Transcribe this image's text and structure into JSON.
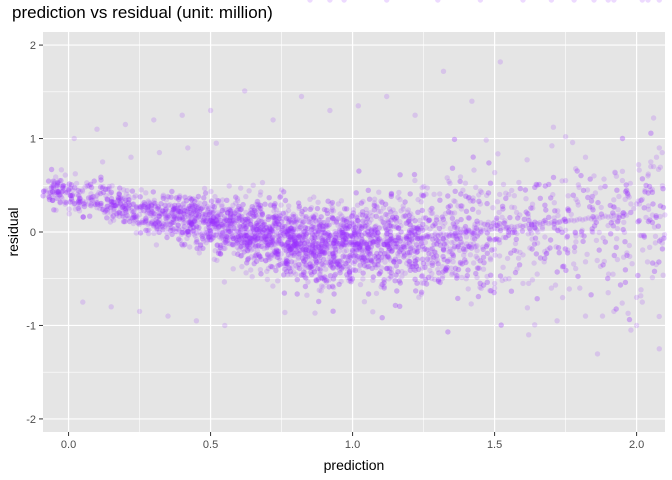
{
  "chart_data": {
    "type": "scatter",
    "title": "prediction vs residual (unit: million)",
    "xlabel": "prediction",
    "ylabel": "residual",
    "xlim": [
      -0.09,
      2.1
    ],
    "ylim": [
      -2.14,
      2.14
    ],
    "x_ticks": [
      0.0,
      0.5,
      1.0,
      1.5,
      2.0
    ],
    "x_tick_labels": [
      "0.0",
      "0.5",
      "1.0",
      "1.5",
      "2.0"
    ],
    "y_ticks": [
      -2,
      -1,
      0,
      1,
      2
    ],
    "y_tick_labels": [
      "-2",
      "-1",
      "0",
      "1",
      "2"
    ],
    "grid": true,
    "point_color": "#9b30ff",
    "point_alpha": 0.18,
    "panel_background": "#e5e5e5",
    "gridline_color": "#ffffff",
    "points_x": [
      -0.08,
      -0.07,
      -0.05,
      -0.04,
      -0.02,
      -0.01,
      0.0,
      0.01,
      0.02,
      0.03,
      0.04,
      0.05,
      0.06,
      0.07,
      0.08,
      0.09,
      0.1,
      0.11,
      0.12,
      0.13,
      0.14,
      0.15,
      0.16,
      0.17,
      0.18,
      0.19,
      0.2,
      0.21,
      0.22,
      0.23,
      0.24,
      0.25,
      0.26,
      0.27,
      0.28,
      0.29,
      0.3,
      0.31,
      0.32,
      0.33,
      0.34,
      0.35,
      0.36,
      0.37,
      0.38,
      0.39,
      0.4,
      0.41,
      0.42,
      0.43,
      0.44,
      0.45,
      0.46,
      0.47,
      0.48,
      0.49,
      0.5,
      0.51,
      0.52,
      0.53,
      0.54,
      0.55,
      0.56,
      0.57,
      0.58,
      0.59,
      0.6,
      0.61,
      0.62,
      0.63,
      0.64,
      0.65,
      0.66,
      0.67,
      0.68,
      0.69,
      0.7,
      0.71,
      0.72,
      0.73,
      0.74,
      0.75,
      0.76,
      0.77,
      0.78,
      0.79,
      0.8,
      0.81,
      0.82,
      0.83,
      0.84,
      0.85,
      0.86,
      0.87,
      0.88,
      0.89,
      0.9,
      0.91,
      0.92,
      0.93,
      0.94,
      0.95,
      0.96,
      0.97,
      0.98,
      0.99,
      1.0,
      1.01,
      1.02,
      1.03,
      1.04,
      1.05,
      1.06,
      1.07,
      1.08,
      1.09,
      1.1,
      1.11,
      1.12,
      1.13,
      1.14,
      1.15,
      1.16,
      1.17,
      1.18,
      1.19,
      1.2,
      1.21,
      1.22,
      1.23,
      1.24,
      1.25,
      1.26,
      1.27,
      1.28,
      1.29,
      1.3,
      1.31,
      1.32,
      1.33,
      1.34,
      1.35,
      1.36,
      1.37,
      1.38,
      1.39,
      1.4,
      1.41,
      1.42,
      1.43,
      1.44,
      1.45,
      1.46,
      1.47,
      1.48,
      1.49,
      1.5,
      1.51,
      1.52,
      1.53,
      1.54,
      1.55,
      1.56,
      1.57,
      1.58,
      1.59,
      1.6,
      1.61,
      1.62,
      1.63,
      1.64,
      1.65,
      1.66,
      1.67,
      1.68,
      1.69,
      1.7,
      1.71,
      1.72,
      1.73,
      1.74,
      1.75,
      1.76,
      1.77,
      1.78,
      1.79,
      1.8,
      1.81,
      1.82,
      1.83,
      1.84,
      1.85,
      1.86,
      1.87,
      1.88,
      1.89,
      1.9,
      1.91,
      1.92,
      1.93,
      1.94,
      1.95,
      1.96,
      1.97,
      1.98,
      1.99,
      2.0,
      2.01,
      2.02,
      2.03,
      2.04,
      2.05,
      2.06,
      2.07,
      2.08,
      2.09,
      0.02,
      0.1,
      0.2,
      0.3,
      0.4,
      0.5,
      0.6,
      0.7,
      0.8,
      0.9,
      1.0,
      1.1,
      1.2,
      1.3,
      1.4,
      1.5,
      1.6,
      1.7,
      1.8,
      1.9,
      2.0,
      0.05,
      0.15,
      0.25,
      0.35,
      0.45,
      0.55,
      0.65,
      0.75,
      0.85,
      0.95,
      1.05,
      1.15,
      1.25,
      1.35,
      1.45,
      1.55,
      1.65,
      1.75,
      1.85,
      1.95,
      2.05,
      0.12,
      0.22,
      0.32,
      0.42,
      0.52,
      0.62,
      0.72,
      0.82,
      0.92,
      1.02,
      1.12,
      1.22,
      1.32,
      1.42,
      1.52,
      1.62,
      1.72,
      1.82,
      1.92,
      2.02,
      1.5,
      1.62,
      1.65,
      1.75,
      1.82,
      1.88,
      1.98,
      2.0,
      2.06,
      2.08,
      1.9,
      1.78,
      1.7,
      1.6,
      1.45,
      1.3,
      1.12,
      0.97,
      0.92,
      0.85,
      1.92,
      1.85,
      2.02,
      2.04,
      2.08
    ],
    "points_y": [
      0.45,
      0.38,
      0.4,
      0.48,
      0.5,
      0.42,
      0.44,
      0.36,
      0.3,
      0.4,
      0.35,
      0.33,
      0.32,
      0.3,
      0.28,
      0.3,
      0.26,
      0.25,
      0.24,
      0.22,
      0.25,
      0.2,
      0.22,
      0.18,
      0.2,
      0.17,
      0.16,
      0.14,
      0.15,
      0.12,
      0.14,
      0.1,
      0.12,
      0.1,
      0.08,
      0.09,
      0.07,
      0.06,
      0.08,
      0.05,
      0.06,
      0.04,
      0.05,
      0.03,
      0.04,
      0.02,
      0.03,
      0.01,
      0.02,
      0.0,
      0.01,
      -0.01,
      0.0,
      -0.02,
      -0.01,
      -0.03,
      -0.02,
      -0.04,
      -0.03,
      -0.05,
      -0.04,
      -0.05,
      -0.06,
      -0.05,
      -0.07,
      -0.06,
      -0.08,
      -0.07,
      -0.08,
      -0.09,
      -0.08,
      -0.1,
      -0.09,
      -0.1,
      -0.11,
      -0.1,
      -0.12,
      -0.11,
      -0.12,
      -0.13,
      -0.12,
      -0.13,
      -0.14,
      -0.13,
      -0.14,
      -0.15,
      -0.14,
      -0.15,
      -0.16,
      -0.15,
      -0.16,
      -0.17,
      -0.16,
      -0.17,
      -0.16,
      -0.17,
      -0.16,
      -0.17,
      -0.16,
      -0.15,
      -0.16,
      -0.15,
      -0.14,
      -0.15,
      -0.14,
      -0.13,
      -0.14,
      -0.13,
      -0.12,
      -0.13,
      -0.12,
      -0.11,
      -0.12,
      -0.11,
      -0.1,
      -0.11,
      -0.1,
      -0.09,
      -0.1,
      -0.09,
      -0.08,
      -0.09,
      -0.08,
      -0.07,
      -0.08,
      -0.07,
      -0.06,
      -0.07,
      -0.06,
      -0.05,
      -0.06,
      -0.05,
      -0.04,
      -0.05,
      -0.04,
      -0.03,
      -0.04,
      -0.03,
      -0.02,
      -0.03,
      -0.02,
      -0.01,
      -0.02,
      -0.01,
      0.0,
      -0.01,
      0.0,
      0.01,
      0.0,
      0.01,
      0.02,
      0.01,
      0.02,
      0.03,
      0.02,
      0.03,
      0.04,
      0.03,
      0.04,
      0.05,
      0.04,
      0.05,
      0.06,
      0.05,
      0.06,
      0.07,
      0.06,
      0.07,
      0.08,
      0.07,
      0.08,
      0.09,
      0.08,
      0.09,
      0.1,
      0.09,
      0.1,
      0.11,
      0.1,
      0.11,
      0.12,
      0.11,
      0.12,
      0.13,
      0.12,
      0.13,
      0.14,
      0.13,
      0.14,
      0.15,
      0.14,
      0.15,
      0.16,
      0.15,
      0.16,
      0.17,
      0.16,
      0.17,
      0.18,
      0.17,
      0.18,
      0.55,
      0.35,
      0.4,
      0.3,
      0.25,
      0.3,
      0.3,
      0.35,
      0.45,
      0.6,
      0.75,
      0.7,
      0.8,
      0.9,
      0.85,
      1.0,
      1.1,
      1.15,
      1.2,
      1.25,
      1.3,
      0.25,
      -0.1,
      -0.15,
      -0.15,
      -0.25,
      -0.3,
      -0.35,
      -0.4,
      -0.5,
      -0.55,
      -0.55,
      -0.6,
      -0.6,
      -0.65,
      -0.7,
      -0.75,
      -0.8,
      -0.85,
      -0.9,
      -0.95,
      -1.0,
      0.5,
      0.45,
      0.35,
      0.3,
      0.2,
      0.2,
      0.15,
      0.2,
      0.3,
      0.4,
      0.5,
      0.55,
      0.6,
      0.65,
      0.7,
      0.75,
      0.8,
      0.85,
      0.9,
      0.95,
      1.51,
      1.2,
      1.45,
      1.3,
      1.35,
      1.45,
      1.25,
      1.72,
      1.4,
      1.82,
      -1.1,
      -0.95,
      -0.9,
      -0.85,
      -0.75,
      -0.6,
      -0.55,
      -0.45,
      1.02,
      0.8,
      -0.9,
      -1.05,
      -1.0,
      1.22,
      -1.25
    ]
  }
}
